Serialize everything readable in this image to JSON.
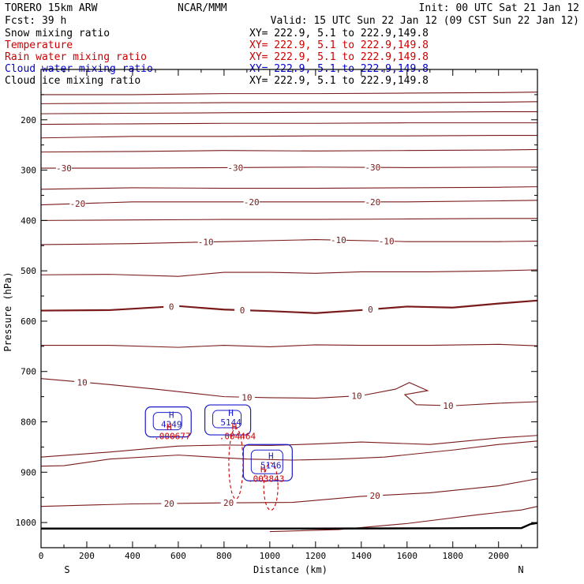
{
  "header": {
    "model": "TORERO  15km ARW",
    "center": "NCAR/MMM",
    "init": "Init: 00 UTC Sat 21 Jan 12",
    "fcst": "Fcst:   39 h",
    "valid": "Valid: 15 UTC Sun 22 Jan 12 (09 CST Sun 22 Jan 12)"
  },
  "fields": [
    {
      "name": "Snow mixing ratio",
      "color": "#000000",
      "xy": "XY= 222.9,  5.1 to 222.9,149.8",
      "xy_color": "#000000"
    },
    {
      "name": "Temperature",
      "color": "#cc0000",
      "xy": "XY= 222.9,  5.1 to 222.9,149.8",
      "xy_color": "#cc0000"
    },
    {
      "name": "Rain water mixing ratio",
      "color": "#cc0000",
      "xy": "XY= 222.9,  5.1 to 222.9,149.8",
      "xy_color": "#cc0000"
    },
    {
      "name": "Cloud water mixing ratio",
      "color": "#0000cc",
      "xy": "XY= 222.9,  5.1 to 222.9,149.8",
      "xy_color": "#0000cc"
    },
    {
      "name": "Cloud ice mixing ratio",
      "color": "#000000",
      "xy": "XY= 222.9,  5.1 to 222.9,149.8",
      "xy_color": "#000000"
    }
  ],
  "chart_data": {
    "type": "line",
    "xlabel": "Distance (km)",
    "ylabel": "Pressure (hPa)",
    "xlim": [
      0,
      2170
    ],
    "ylim": [
      1050,
      100
    ],
    "x_ticks": [
      0,
      200,
      400,
      600,
      800,
      1000,
      1200,
      1400,
      1600,
      1800,
      2000
    ],
    "y_ticks": [
      200,
      300,
      400,
      500,
      600,
      700,
      800,
      900,
      1000
    ],
    "x_end_labels": {
      "left": "S",
      "right": "N"
    },
    "y_scale": "linear",
    "temperature_contours": [
      {
        "x": [
          0,
          400,
          800,
          1200,
          1600,
          2000,
          2170
        ],
        "p": [
          150,
          150,
          148,
          148,
          147,
          146,
          145
        ]
      },
      {
        "x": [
          0,
          400,
          800,
          1200,
          1600,
          2000,
          2170
        ],
        "p": [
          168,
          167,
          166,
          166,
          166,
          165,
          164
        ]
      },
      {
        "x": [
          0,
          400,
          800,
          1200,
          1600,
          2000,
          2170
        ],
        "p": [
          188,
          187,
          186,
          185,
          185,
          184,
          184
        ]
      },
      {
        "x": [
          0,
          400,
          800,
          1200,
          1600,
          2000,
          2170
        ],
        "p": [
          209,
          208,
          207,
          207,
          206,
          206,
          206
        ]
      },
      {
        "x": [
          0,
          400,
          800,
          1200,
          1600,
          2000,
          2170
        ],
        "p": [
          236,
          233,
          233,
          232,
          232,
          231,
          231
        ]
      },
      {
        "x": [
          0,
          400,
          800,
          1200,
          1600,
          2000,
          2170
        ],
        "p": [
          264,
          263,
          261,
          262,
          261,
          260,
          259
        ]
      },
      {
        "x": [
          0,
          400,
          800,
          1200,
          1600,
          2000,
          2170
        ],
        "p": [
          296,
          296,
          295,
          294,
          295,
          294,
          294
        ],
        "label": "-30",
        "label_x": [
          100,
          850,
          1450
        ]
      },
      {
        "x": [
          0,
          400,
          800,
          1200,
          1600,
          2000,
          2170
        ],
        "p": [
          338,
          335,
          336,
          336,
          335,
          334,
          333
        ]
      },
      {
        "x": [
          0,
          400,
          800,
          1200,
          1600,
          2000,
          2170
        ],
        "p": [
          369,
          363,
          363,
          363,
          363,
          361,
          360
        ],
        "label": "-20",
        "label_x": [
          160,
          920,
          1450
        ]
      },
      {
        "x": [
          0,
          400,
          800,
          1200,
          1600,
          2000,
          2170
        ],
        "p": [
          400,
          399,
          398,
          398,
          397,
          396,
          396
        ]
      },
      {
        "x": [
          0,
          400,
          800,
          1200,
          1600,
          2000,
          2170
        ],
        "p": [
          448,
          446,
          442,
          438,
          442,
          442,
          441
        ],
        "label": "-10",
        "label_x": [
          720,
          1300,
          1510
        ]
      },
      {
        "x": [
          0,
          300,
          600,
          800,
          1000,
          1200,
          1400,
          1700,
          2000,
          2170
        ],
        "p": [
          508,
          507,
          511,
          503,
          503,
          505,
          502,
          502,
          500,
          498
        ]
      },
      {
        "x": [
          0,
          300,
          600,
          800,
          1000,
          1200,
          1400,
          1600,
          1800,
          2000,
          2170
        ],
        "p": [
          579,
          578,
          570,
          577,
          580,
          584,
          578,
          571,
          573,
          565,
          559
        ],
        "label": "0",
        "label_x": [
          570,
          880,
          1440
        ],
        "bold": true
      },
      {
        "x": [
          0,
          300,
          600,
          800,
          1000,
          1200,
          1400,
          1700,
          2000,
          2170
        ],
        "p": [
          648,
          648,
          652,
          648,
          651,
          647,
          648,
          648,
          646,
          649
        ]
      },
      {
        "x": [
          0,
          300,
          500,
          800,
          1000,
          1200,
          1400,
          1550,
          1610,
          1690,
          1590,
          1640,
          1800,
          2000,
          2170
        ],
        "p": [
          714,
          726,
          735,
          750,
          752,
          753,
          748,
          735,
          722,
          738,
          746,
          766,
          768,
          763,
          760
        ],
        "label": "10",
        "label_x": [
          180,
          900,
          1380,
          1780
        ]
      },
      {
        "x": [
          0,
          300,
          600,
          800,
          1000,
          1200,
          1400,
          1700,
          2000,
          2170
        ],
        "p": [
          870,
          860,
          848,
          846,
          847,
          844,
          840,
          845,
          832,
          827
        ]
      },
      {
        "x": [
          0,
          100,
          300,
          600,
          900,
          1100,
          1300,
          1500,
          1800,
          2000,
          2170
        ],
        "p": [
          888,
          887,
          874,
          866,
          874,
          876,
          874,
          870,
          856,
          845,
          838
        ]
      },
      {
        "x": [
          0,
          400,
          800,
          1100,
          1400,
          1700,
          2000,
          2170
        ],
        "p": [
          968,
          963,
          961,
          960,
          948,
          941,
          927,
          913
        ],
        "label": "20",
        "label_x": [
          560,
          820,
          1460
        ]
      },
      {
        "x": [
          1000,
          1300,
          1600,
          1900,
          2100,
          2170
        ],
        "p": [
          1018,
          1014,
          1002,
          985,
          975,
          968
        ]
      }
    ],
    "surface": {
      "x": [
        0,
        1200,
        2100,
        2140,
        2170
      ],
      "p": [
        1012,
        1012,
        1011,
        1003,
        1001
      ]
    },
    "maxima": [
      {
        "field": "Cloud water mixing ratio",
        "marker": "H",
        "label": "4249",
        "x": 570,
        "p": 797
      },
      {
        "field": "Cloud water mixing ratio",
        "marker": "H",
        "label": "5144",
        "x": 830,
        "p": 793
      },
      {
        "field": "Cloud water mixing ratio",
        "marker": "H",
        "label": "5146",
        "x": 1005,
        "p": 878
      },
      {
        "field": "Rain water mixing ratio",
        "marker": "H",
        "label": ".000677",
        "x": 560,
        "p": 820
      },
      {
        "field": "Rain water mixing ratio",
        "marker": "H",
        "label": ".004464",
        "x": 845,
        "p": 820
      },
      {
        "field": "Rain water mixing ratio",
        "marker": "H",
        "label": ".003843",
        "x": 970,
        "p": 905
      }
    ],
    "grid": false,
    "legend_position": "top-left"
  }
}
